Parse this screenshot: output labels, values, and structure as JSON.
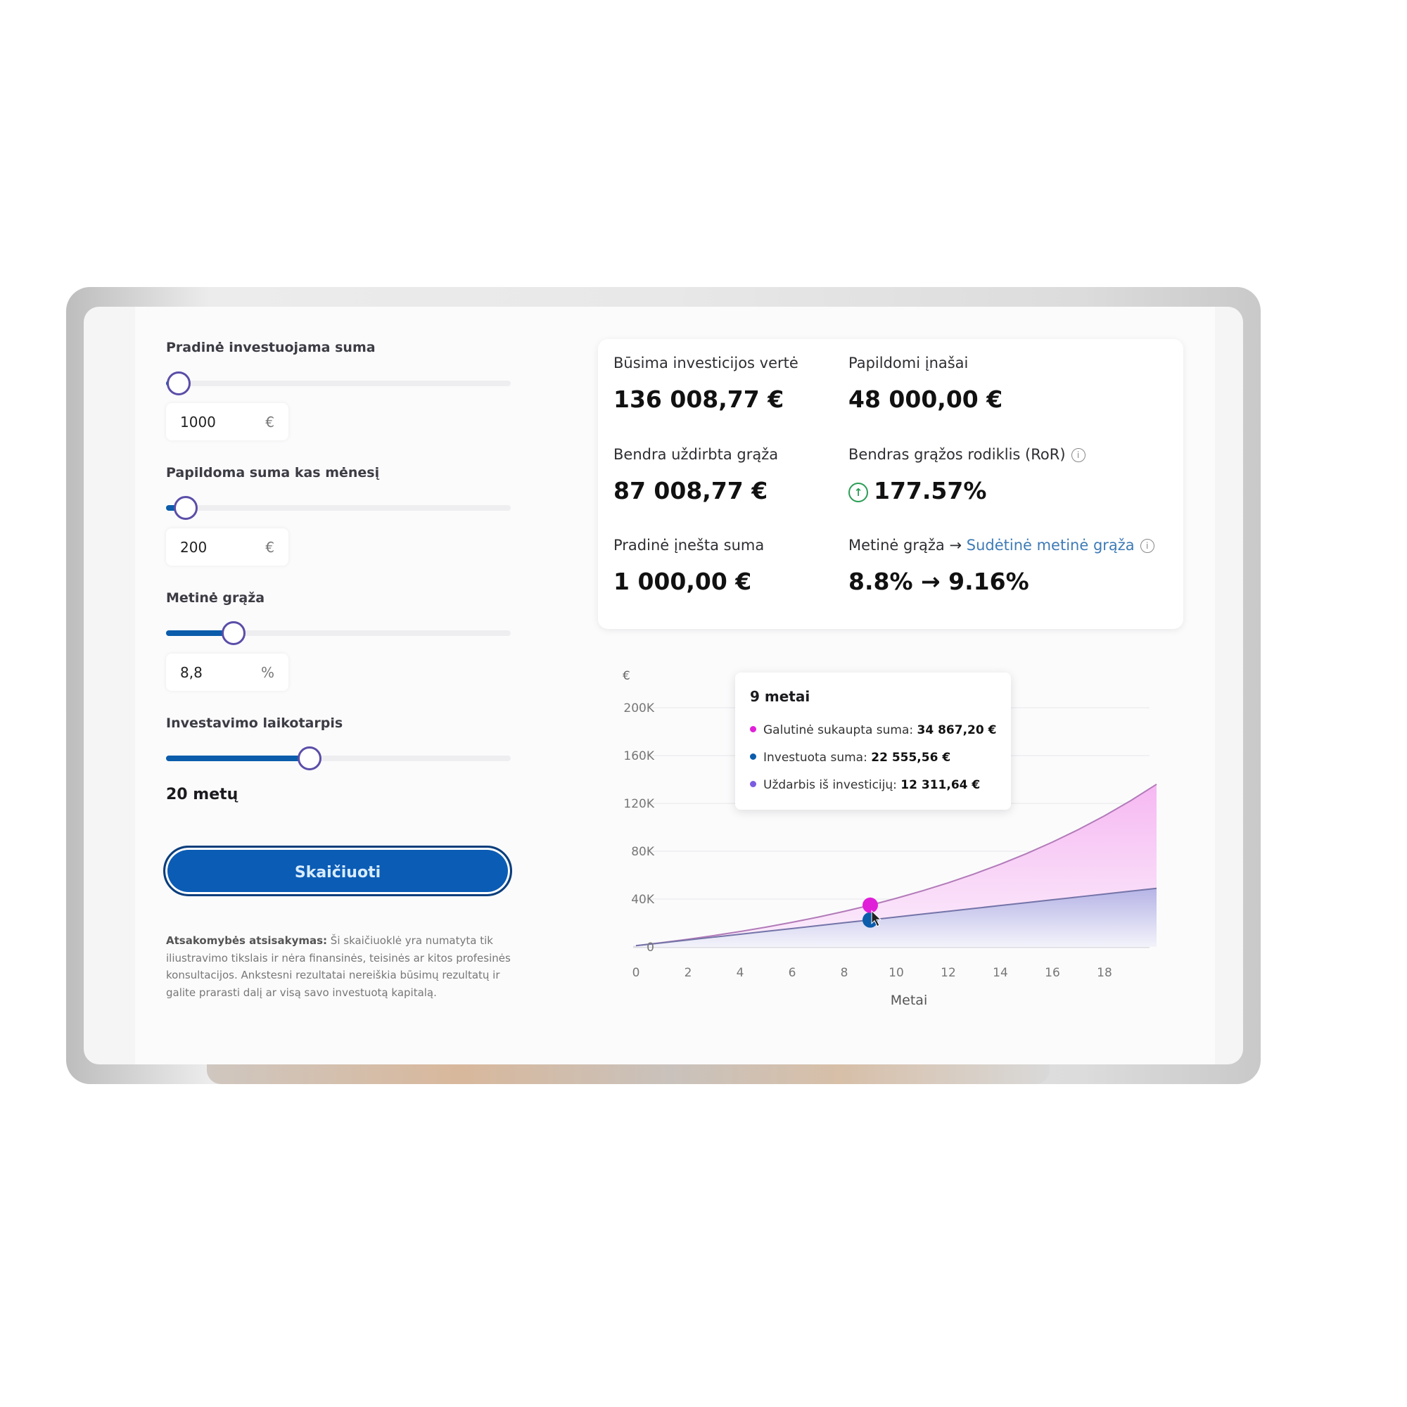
{
  "inputs": {
    "initial": {
      "label": "Pradinė investuojama suma",
      "value": "1000",
      "unit": "€",
      "slider_fraction": 0.03
    },
    "monthly": {
      "label": "Papildoma suma kas mėnesį",
      "value": "200",
      "unit": "€",
      "slider_fraction": 0.05
    },
    "rate": {
      "label": "Metinė grąža",
      "value": "8,8",
      "unit": "%",
      "slider_fraction": 0.19
    },
    "period": {
      "label": "Investavimo laikotarpis",
      "value_text": "20 metų",
      "slider_fraction": 0.41
    }
  },
  "calculate_button": "Skaičiuoti",
  "disclaimer": {
    "bold": "Atsakomybės atsisakymas:",
    "text": " Ši skaičiuoklė yra numatyta tik iliustravimo tikslais ir nėra finansinės, teisinės ar kitos profesinės konsultacijos. Ankstesni rezultatai nereiškia būsimų rezultatų ir galite prarasti dalį ar visą savo investuotą kapitalą."
  },
  "results": {
    "future_value": {
      "label": "Būsima investicijos vertė",
      "value": "136 008,77 €"
    },
    "contributions": {
      "label": "Papildomi įnašai",
      "value": "48 000,00 €"
    },
    "total_return": {
      "label": "Bendra uždirbta grąža",
      "value": "87 008,77 €"
    },
    "ror": {
      "label": "Bendras grąžos rodiklis (RoR)",
      "value": "177.57%"
    },
    "initial_sum": {
      "label": "Pradinė įnešta suma",
      "value": "1 000,00 €"
    },
    "annual": {
      "label_a": "Metinė grąža",
      "arrow": "→",
      "label_b": "Sudėtinė metinė grąža",
      "value": "8.8% → 9.16%"
    }
  },
  "colors": {
    "accent": "#0b5cb5",
    "final": "#e020d8",
    "invested": "#0b5cab",
    "earnings": "#7a5ce0",
    "positive": "#2a9d55"
  },
  "chart_data": {
    "type": "area",
    "ylabel": "€",
    "xlabel": "Metai",
    "xlim": [
      0,
      20
    ],
    "ylim": [
      0,
      200000
    ],
    "yticks": [
      "0",
      "40K",
      "80K",
      "120K",
      "160K",
      "200K"
    ],
    "yticks_values": [
      0,
      40000,
      80000,
      120000,
      160000,
      200000
    ],
    "xticks": [
      0,
      2,
      4,
      6,
      8,
      10,
      12,
      14,
      16,
      18
    ],
    "grid": true,
    "x": [
      0,
      1,
      2,
      3,
      4,
      5,
      6,
      7,
      8,
      9,
      10,
      11,
      12,
      13,
      14,
      15,
      16,
      17,
      18,
      19,
      20
    ],
    "series": [
      {
        "name": "Galutinė sukaupta suma",
        "values": [
          1000,
          3590,
          6417,
          9503,
          12872,
          16549,
          20563,
          24945,
          29728,
          34867,
          40648,
          46870,
          53662,
          61075,
          69168,
          78002,
          87645,
          98171,
          109663,
          122207,
          136009
        ]
      },
      {
        "name": "Investuota suma",
        "values": [
          1000,
          3400,
          5800,
          8200,
          10600,
          13000,
          15400,
          17800,
          20200,
          22556,
          25000,
          27400,
          29800,
          32200,
          34600,
          37000,
          39400,
          41800,
          44200,
          46600,
          49000
        ]
      }
    ],
    "tooltip": {
      "title": "9 metai",
      "hover_x": 9,
      "rows": [
        {
          "label": "Galutinė sukaupta suma:",
          "value": "34 867,20 €"
        },
        {
          "label": "Investuota suma:",
          "value": "22 555,56 €"
        },
        {
          "label": "Uždarbis iš investicijų:",
          "value": "12 311,64 €"
        }
      ]
    }
  }
}
